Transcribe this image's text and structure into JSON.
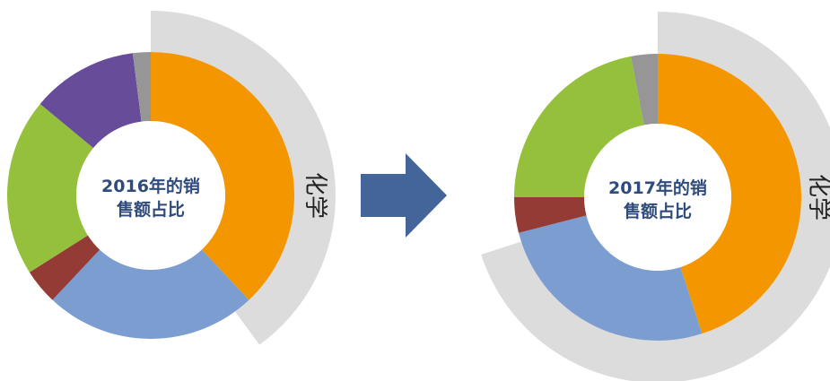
{
  "chart_data": [
    {
      "type": "donut",
      "center_label": [
        "2016年的销",
        "售额占比"
      ],
      "outer_ring_label": "化学",
      "outer_ring_share": 0.4,
      "slices": [
        {
          "value": 0.38,
          "color": "#f39600"
        },
        {
          "value": 0.24,
          "color": "#7b9dd0"
        },
        {
          "value": 0.04,
          "color": "#943b35"
        },
        {
          "value": 0.2,
          "color": "#95c03c"
        },
        {
          "value": 0.12,
          "color": "#674c9a"
        },
        {
          "value": 0.02,
          "color": "#969696"
        }
      ]
    },
    {
      "type": "donut",
      "center_label": [
        "2017年的销",
        "售额占比"
      ],
      "outer_ring_label": "化学",
      "outer_ring_share": 0.7,
      "slices": [
        {
          "value": 0.45,
          "color": "#f39600"
        },
        {
          "value": 0.26,
          "color": "#7b9dd0"
        },
        {
          "value": 0.04,
          "color": "#943b35"
        },
        {
          "value": 0.22,
          "color": "#95c03c"
        },
        {
          "value": 0.03,
          "color": "#969696"
        }
      ]
    }
  ],
  "colors": {
    "arrow": "#44659a",
    "outer_ring": "#dcdcdc",
    "center_fill": "#ffffff",
    "center_text": "#2f4b7c",
    "side_text": "#222222"
  },
  "icons": {
    "arrow": "right-arrow-icon"
  }
}
